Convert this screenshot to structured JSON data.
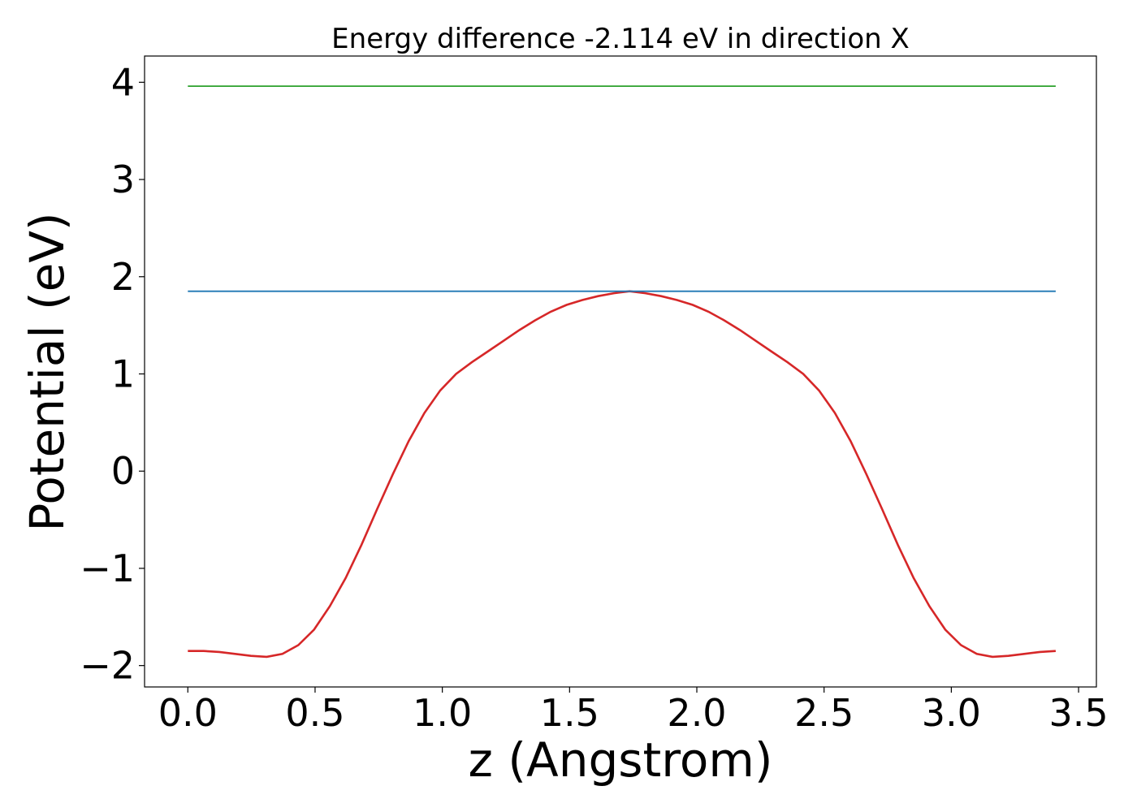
{
  "chart_data": {
    "type": "line",
    "title": "Energy difference -2.114 eV in direction X",
    "xlabel": "z (Angstrom)",
    "ylabel": "Potential (eV)",
    "xlim": [
      -0.17,
      3.57
    ],
    "ylim": [
      -2.22,
      4.27
    ],
    "x_ticks": [
      0.0,
      0.5,
      1.0,
      1.5,
      2.0,
      2.5,
      3.0,
      3.5
    ],
    "x_tick_labels": [
      "0.0",
      "0.5",
      "1.0",
      "1.5",
      "2.0",
      "2.5",
      "3.0",
      "3.5"
    ],
    "y_ticks": [
      -2,
      -1,
      0,
      1,
      2,
      3,
      4
    ],
    "y_tick_labels": [
      "−2",
      "−1",
      "0",
      "1",
      "2",
      "3",
      "4"
    ],
    "grid": false,
    "series": [
      {
        "color": "#d62728",
        "x": [
          0.0,
          0.062,
          0.124,
          0.186,
          0.248,
          0.31,
          0.372,
          0.434,
          0.496,
          0.558,
          0.62,
          0.682,
          0.744,
          0.806,
          0.868,
          0.93,
          0.992,
          1.054,
          1.116,
          1.178,
          1.24,
          1.302,
          1.364,
          1.426,
          1.488,
          1.55,
          1.612,
          1.674,
          1.736,
          1.798,
          1.86,
          1.922,
          1.984,
          2.046,
          2.108,
          2.17,
          2.232,
          2.294,
          2.356,
          2.418,
          2.48,
          2.542,
          2.604,
          2.666,
          2.728,
          2.79,
          2.852,
          2.914,
          2.976,
          3.038,
          3.1,
          3.162,
          3.224,
          3.286,
          3.348,
          3.41
        ],
        "y": [
          -1.85,
          -1.85,
          -1.86,
          -1.88,
          -1.9,
          -1.91,
          -1.88,
          -1.79,
          -1.63,
          -1.39,
          -1.1,
          -0.76,
          -0.39,
          -0.03,
          0.31,
          0.6,
          0.83,
          1.0,
          1.12,
          1.23,
          1.34,
          1.45,
          1.55,
          1.64,
          1.71,
          1.76,
          1.8,
          1.83,
          1.85,
          1.83,
          1.8,
          1.76,
          1.71,
          1.64,
          1.55,
          1.45,
          1.34,
          1.23,
          1.12,
          1.0,
          0.83,
          0.6,
          0.31,
          -0.03,
          -0.39,
          -0.76,
          -1.1,
          -1.39,
          -1.63,
          -1.79,
          -1.88,
          -1.91,
          -1.9,
          -1.88,
          -1.86,
          -1.85
        ]
      },
      {
        "color": "#1f77b4",
        "x": [
          0.0,
          3.41
        ],
        "y": [
          1.85,
          1.85
        ]
      },
      {
        "color": "#2ca02c",
        "x": [
          0.0,
          3.41
        ],
        "y": [
          3.96,
          3.96
        ]
      }
    ]
  }
}
